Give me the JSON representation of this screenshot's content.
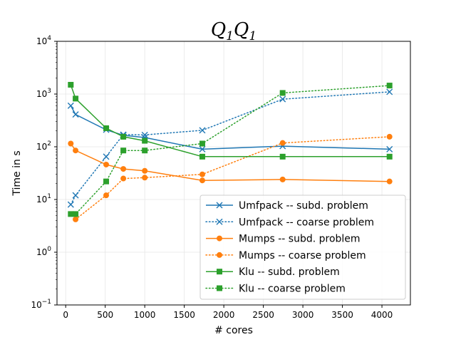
{
  "chart_data": {
    "type": "line",
    "title_main": "Q",
    "title_sub": "1",
    "title_main2": "Q",
    "title_sub2": "1",
    "xlabel": "# cores",
    "ylabel": "Time in s",
    "xlim": [
      -110,
      4360
    ],
    "ylim": [
      0.1,
      10000
    ],
    "yscale": "log",
    "grid": true,
    "legend_position": "lower-right",
    "x_ticks": [
      0,
      500,
      1000,
      1500,
      2000,
      2500,
      3000,
      3500,
      4000
    ],
    "y_ticks": [
      {
        "value": 0.1,
        "base": "10",
        "exp": "−1"
      },
      {
        "value": 1,
        "base": "10",
        "exp": "0"
      },
      {
        "value": 10,
        "base": "10",
        "exp": "1"
      },
      {
        "value": 100,
        "base": "10",
        "exp": "2"
      },
      {
        "value": 1000,
        "base": "10",
        "exp": "3"
      },
      {
        "value": 10000,
        "base": "10",
        "exp": "4"
      }
    ],
    "series": [
      {
        "name": "Umfpack -- subd. problem",
        "color": "#1f77b4",
        "style": "solid",
        "marker": "x",
        "points": [
          [
            64,
            600
          ],
          [
            125,
            410
          ],
          [
            512,
            210
          ],
          [
            729,
            165
          ],
          [
            1000,
            150
          ],
          [
            1728,
            90
          ],
          [
            2744,
            103
          ],
          [
            4096,
            90
          ]
        ]
      },
      {
        "name": "Umfpack -- coarse problem",
        "color": "#1f77b4",
        "style": "dotted",
        "marker": "x",
        "points": [
          [
            64,
            8
          ],
          [
            125,
            12
          ],
          [
            512,
            65
          ],
          [
            729,
            170
          ],
          [
            1000,
            168
          ],
          [
            1728,
            205
          ],
          [
            2744,
            800
          ],
          [
            4096,
            1100
          ]
        ]
      },
      {
        "name": "Mumps -- subd. problem",
        "color": "#ff7f0e",
        "style": "solid",
        "marker": "o",
        "points": [
          [
            64,
            115
          ],
          [
            125,
            85
          ],
          [
            512,
            46
          ],
          [
            729,
            38
          ],
          [
            1000,
            35
          ],
          [
            1728,
            23
          ],
          [
            2744,
            24
          ],
          [
            4096,
            22
          ]
        ]
      },
      {
        "name": "Mumps -- coarse problem",
        "color": "#ff7f0e",
        "style": "dotted",
        "marker": "o",
        "points": [
          [
            125,
            4.2
          ],
          [
            512,
            12
          ],
          [
            729,
            25
          ],
          [
            1000,
            26
          ],
          [
            1728,
            30
          ],
          [
            2744,
            118
          ],
          [
            4096,
            155
          ]
        ]
      },
      {
        "name": "Klu -- subd. problem",
        "color": "#2ca02c",
        "style": "solid",
        "marker": "s",
        "points": [
          [
            64,
            1500
          ],
          [
            125,
            820
          ],
          [
            512,
            225
          ],
          [
            729,
            155
          ],
          [
            1000,
            130
          ],
          [
            1728,
            65
          ],
          [
            2744,
            65
          ],
          [
            4096,
            65
          ]
        ]
      },
      {
        "name": "Klu -- coarse problem",
        "color": "#2ca02c",
        "style": "dotted",
        "marker": "s",
        "points": [
          [
            64,
            5.3
          ],
          [
            125,
            5.3
          ],
          [
            512,
            22
          ],
          [
            729,
            85
          ],
          [
            1000,
            85
          ],
          [
            1728,
            115
          ],
          [
            2744,
            1050
          ],
          [
            4096,
            1450
          ]
        ]
      }
    ]
  }
}
